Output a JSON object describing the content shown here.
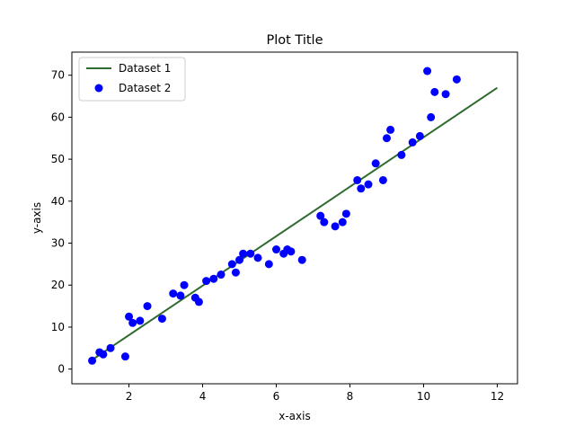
{
  "chart_data": {
    "type": "scatter",
    "title": "Plot Title",
    "xlabel": "x-axis",
    "ylabel": "y-axis",
    "xlim": [
      0.45,
      12.55
    ],
    "ylim": [
      -3.5,
      75.5
    ],
    "xticks": [
      2,
      4,
      6,
      8,
      10,
      12
    ],
    "yticks": [
      0,
      10,
      20,
      30,
      40,
      50,
      60,
      70
    ],
    "grid": false,
    "legend_position": "upper left",
    "series": [
      {
        "name": "Dataset 1",
        "kind": "line",
        "color": "#2e6b2e",
        "x": [
          1,
          12
        ],
        "y": [
          2.2,
          67
        ]
      },
      {
        "name": "Dataset 2",
        "kind": "scatter",
        "color": "#0000ff",
        "x": [
          1,
          1.2,
          1.3,
          1.5,
          1.9,
          2.0,
          2.1,
          2.3,
          2.5,
          2.9,
          3.2,
          3.4,
          3.5,
          3.8,
          3.9,
          4.1,
          4.3,
          4.5,
          4.8,
          4.9,
          5.0,
          5.1,
          5.3,
          5.5,
          5.8,
          6.0,
          6.2,
          6.3,
          6.4,
          6.7,
          7.2,
          7.3,
          7.6,
          7.8,
          7.9,
          8.2,
          8.3,
          8.5,
          8.7,
          8.9,
          9.0,
          9.1,
          9.4,
          9.7,
          9.9,
          10.1,
          10.2,
          10.3,
          10.6,
          10.9
        ],
        "y": [
          2,
          4,
          3.5,
          5,
          3,
          12.5,
          11,
          11.5,
          15,
          12,
          18,
          17.5,
          20,
          17,
          16,
          21,
          21.5,
          22.5,
          25,
          23,
          26,
          27.5,
          27.5,
          26.5,
          25,
          28.5,
          27.5,
          28.5,
          28,
          26,
          36.5,
          35,
          34,
          35,
          37,
          45,
          43,
          44,
          49,
          45,
          55,
          57,
          51,
          54,
          55.5,
          71,
          60,
          66,
          65.5,
          69
        ]
      }
    ]
  }
}
